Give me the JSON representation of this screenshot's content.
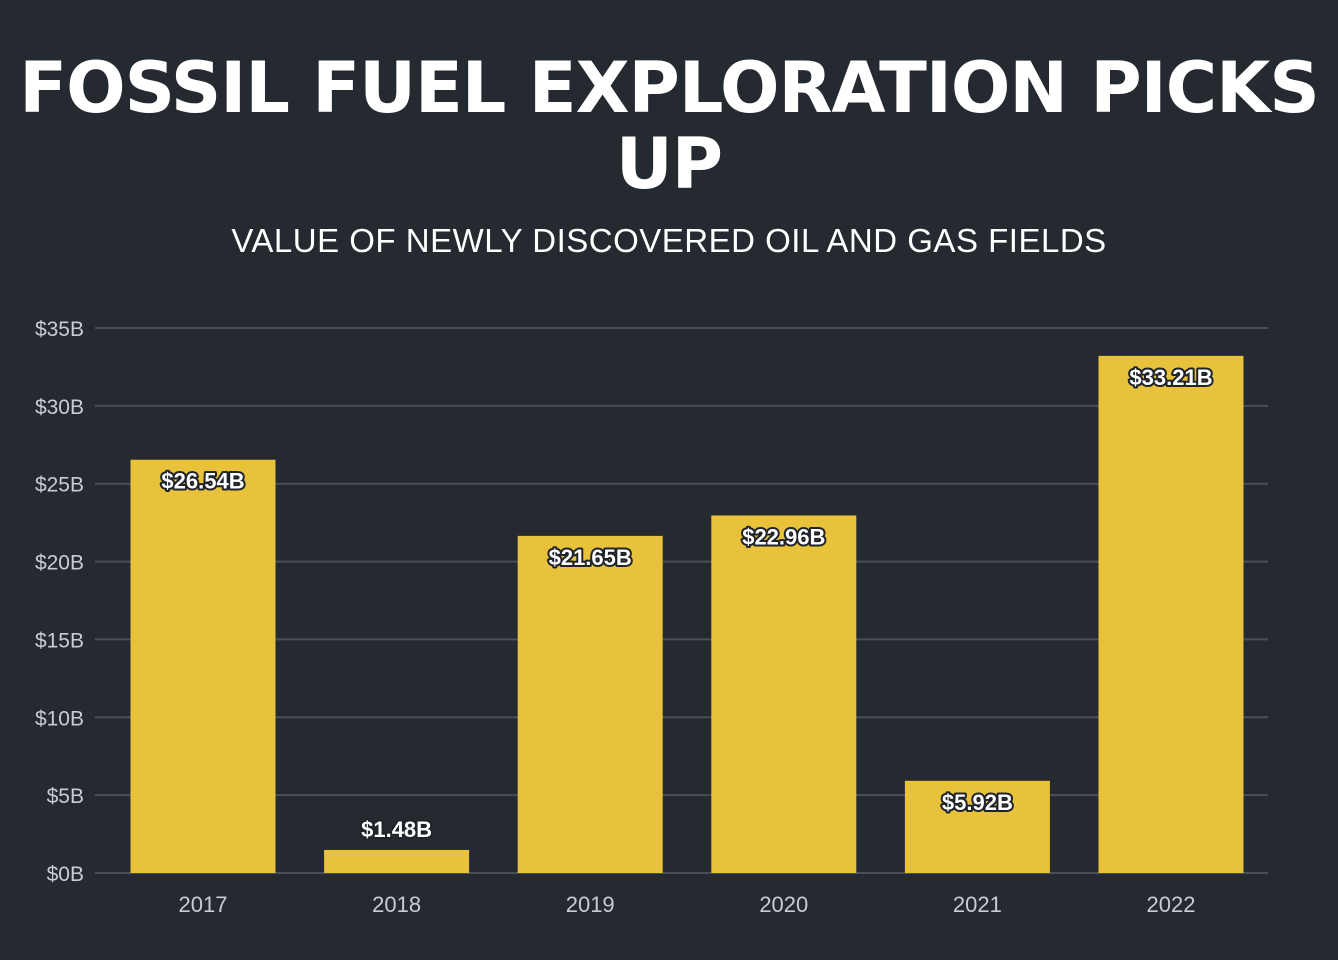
{
  "title": "FOSSIL FUEL EXPLORATION PICKS UP",
  "subtitle": "VALUE OF NEWLY DISCOVERED OIL AND GAS FIELDS",
  "colors": {
    "background": "#252a31",
    "bar": "#e8c23a",
    "grid": "#4a4f57",
    "text": "#ffffff"
  },
  "chart_data": {
    "type": "bar",
    "categories": [
      "2017",
      "2018",
      "2019",
      "2020",
      "2021",
      "2022"
    ],
    "values": [
      26.54,
      1.48,
      21.65,
      22.96,
      5.92,
      33.21
    ],
    "data_labels": [
      "$26.54B",
      "$1.48B",
      "$21.65B",
      "$22.96B",
      "$5.92B",
      "$33.21B"
    ],
    "yticks": [
      0,
      5,
      10,
      15,
      20,
      25,
      30,
      35
    ],
    "ytick_labels": [
      "$0B",
      "$5B",
      "$10B",
      "$15B",
      "$20B",
      "$25B",
      "$30B",
      "$35B"
    ],
    "ylim": [
      0,
      35
    ],
    "grid": true,
    "xlabel": "",
    "ylabel": ""
  }
}
